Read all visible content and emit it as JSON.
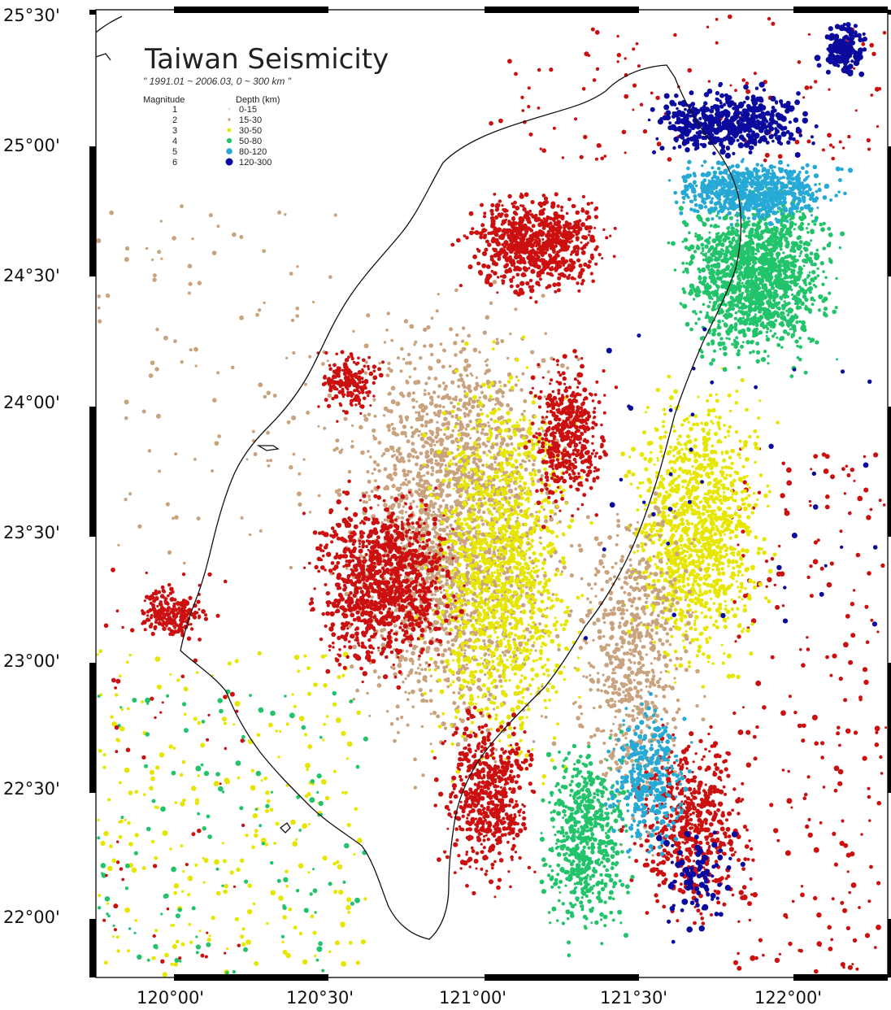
{
  "map": {
    "title": "Taiwan Seismicity",
    "subtitle": "\" 1991.01 ~ 2006.03, 0 ~ 300 km \"",
    "lat_labels": [
      "25°30'",
      "25°00'",
      "24°30'",
      "24°00'",
      "23°30'",
      "23°00'",
      "22°30'",
      "22°00'"
    ],
    "lon_labels": [
      "120°00'",
      "120°30'",
      "121°00'",
      "121°30'",
      "122°00'"
    ],
    "legend": {
      "magnitude_header": "Magnitude",
      "depth_header": "Depth (km)",
      "magnitudes": [
        "1",
        "2",
        "3",
        "4",
        "5",
        "6"
      ],
      "depth_classes": [
        {
          "label": "0-15",
          "color": "#c8c8c8"
        },
        {
          "label": "15-30",
          "color": "#c9a27e"
        },
        {
          "label": "30-50",
          "color": "#e6e600"
        },
        {
          "label": "50-80",
          "color": "#22c46b"
        },
        {
          "label": "80-120",
          "color": "#27a9d6"
        },
        {
          "label": "120-300",
          "color": "#0a0a9e"
        }
      ]
    },
    "event_colors": {
      "shallow_red": "#cc1010",
      "tan": "#c9a27e",
      "yellow": "#e6e600",
      "green": "#22c46b",
      "blue": "#27a9d6",
      "navy": "#0a0a9e"
    }
  }
}
